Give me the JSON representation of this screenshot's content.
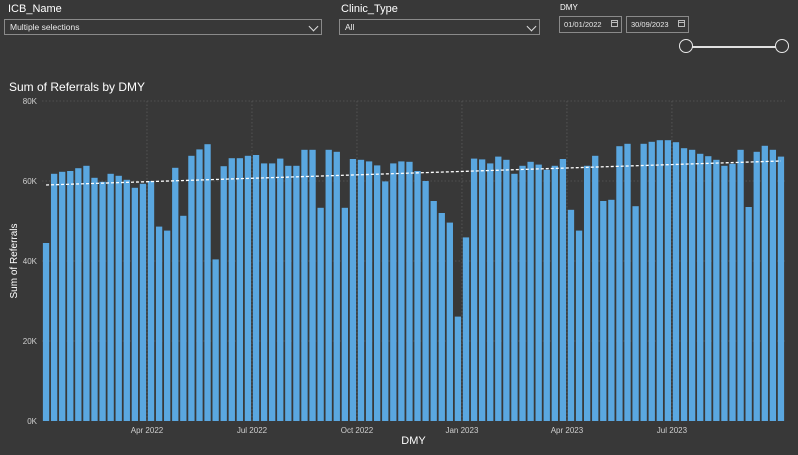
{
  "slicers": {
    "icb": {
      "label": "ICB_Name",
      "value": "Multiple selections"
    },
    "clinic": {
      "label": "Clinic_Type",
      "value": "All"
    },
    "dmy": {
      "label": "DMY",
      "start": "01/01/2022",
      "end": "30/09/2023"
    }
  },
  "chart_data": {
    "type": "bar",
    "title": "Sum of Referrals by DMY",
    "xlabel": "DMY",
    "ylabel": "Sum of Referrals",
    "ylim": [
      0,
      80000
    ],
    "yticks": [
      {
        "value": 0,
        "label": "0K"
      },
      {
        "value": 20000,
        "label": "20K"
      },
      {
        "value": 40000,
        "label": "40K"
      },
      {
        "value": 60000,
        "label": "60K"
      },
      {
        "value": 80000,
        "label": "80K"
      }
    ],
    "xticks": [
      {
        "index": 13,
        "label": "Apr 2022"
      },
      {
        "index": 26,
        "label": "Jul 2022"
      },
      {
        "index": 39,
        "label": "Oct 2022"
      },
      {
        "index": 52,
        "label": "Jan 2023"
      },
      {
        "index": 65,
        "label": "Apr 2023"
      },
      {
        "index": 78,
        "label": "Jul 2023"
      }
    ],
    "values": [
      44500,
      61800,
      62300,
      62500,
      63200,
      63800,
      60800,
      59800,
      61800,
      61300,
      60300,
      58300,
      59300,
      60000,
      48600,
      47600,
      63300,
      51300,
      66300,
      67900,
      69200,
      40400,
      63700,
      65700,
      65700,
      66300,
      66500,
      64400,
      64400,
      65600,
      63800,
      63800,
      67800,
      67800,
      53300,
      67800,
      67300,
      53300,
      65500,
      65300,
      64900,
      63900,
      59900,
      64400,
      64900,
      64800,
      62500,
      60000,
      55000,
      52000,
      49600,
      26100,
      45900,
      65600,
      65400,
      64400,
      66100,
      65300,
      61800,
      63800,
      64800,
      64100,
      62800,
      63800,
      65500,
      52800,
      47600,
      63800,
      66300,
      55000,
      55300,
      68700,
      69300,
      53700,
      69300,
      69800,
      70200,
      70200,
      69700,
      68200,
      67800,
      66800,
      66200,
      65300,
      63800,
      64300,
      67800,
      53500,
      67300,
      68800,
      67800,
      66100
    ],
    "trend": {
      "start": 59000,
      "end": 65000
    },
    "bar_color": "#5aa7e0",
    "grid": true,
    "legend": "none"
  }
}
